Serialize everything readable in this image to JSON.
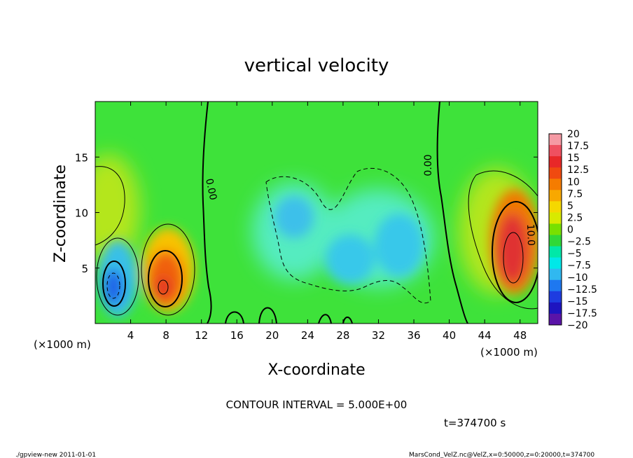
{
  "chart_data": {
    "type": "heatmap",
    "title": "vertical velocity",
    "xlabel": "X-coordinate",
    "ylabel": "Z-coordinate",
    "x_unit_left": "(×1000 m)",
    "x_unit_right": "(×1000 m)",
    "x_range": [
      0,
      50
    ],
    "y_range": [
      0,
      20
    ],
    "x_ticks": [
      4,
      8,
      12,
      16,
      20,
      24,
      28,
      32,
      36,
      40,
      44,
      48
    ],
    "y_ticks": [
      5,
      10,
      15
    ],
    "colorbar_levels": [
      20,
      17.5,
      15,
      12.5,
      10,
      7.5,
      5,
      2.5,
      0,
      -2.5,
      -5,
      -7.5,
      -10,
      -12.5,
      -15,
      -17.5,
      -20
    ],
    "colorbar_colors": [
      "#f59aa4",
      "#ef5060",
      "#e82828",
      "#f04a10",
      "#f57c00",
      "#f8a800",
      "#f5d800",
      "#d8ea00",
      "#78e000",
      "#30d838",
      "#00e8a8",
      "#00e8e8",
      "#30b8f0",
      "#1e78f0",
      "#1e3ce0",
      "#1e14c0",
      "#5a14a8"
    ],
    "contour_labels": [
      "0.00",
      "0.00",
      "10.0"
    ],
    "contour_interval": "CONTOUR INTERVAL = 5.000E+00",
    "time_label": "t=374700  s",
    "features": [
      {
        "x": 2.5,
        "z": 3.5,
        "value": -12
      },
      {
        "x": 7.8,
        "z": 3.3,
        "value": 16
      },
      {
        "x": 46.5,
        "z": 6.0,
        "value": 18
      },
      {
        "x": 22,
        "z": 9.5,
        "value": -7
      },
      {
        "x": 29,
        "z": 6.2,
        "value": -7
      },
      {
        "x": 34,
        "z": 7.5,
        "value": -8
      },
      {
        "x": 2.8,
        "z": 12,
        "value": 6
      },
      {
        "x": 44,
        "z": 10,
        "value": 6
      }
    ]
  },
  "footer": {
    "left": "./gpview-new   2011-01-01",
    "right": "MarsCond_VelZ.nc@VelZ,x=0:50000,z=0:20000,t=374700"
  }
}
